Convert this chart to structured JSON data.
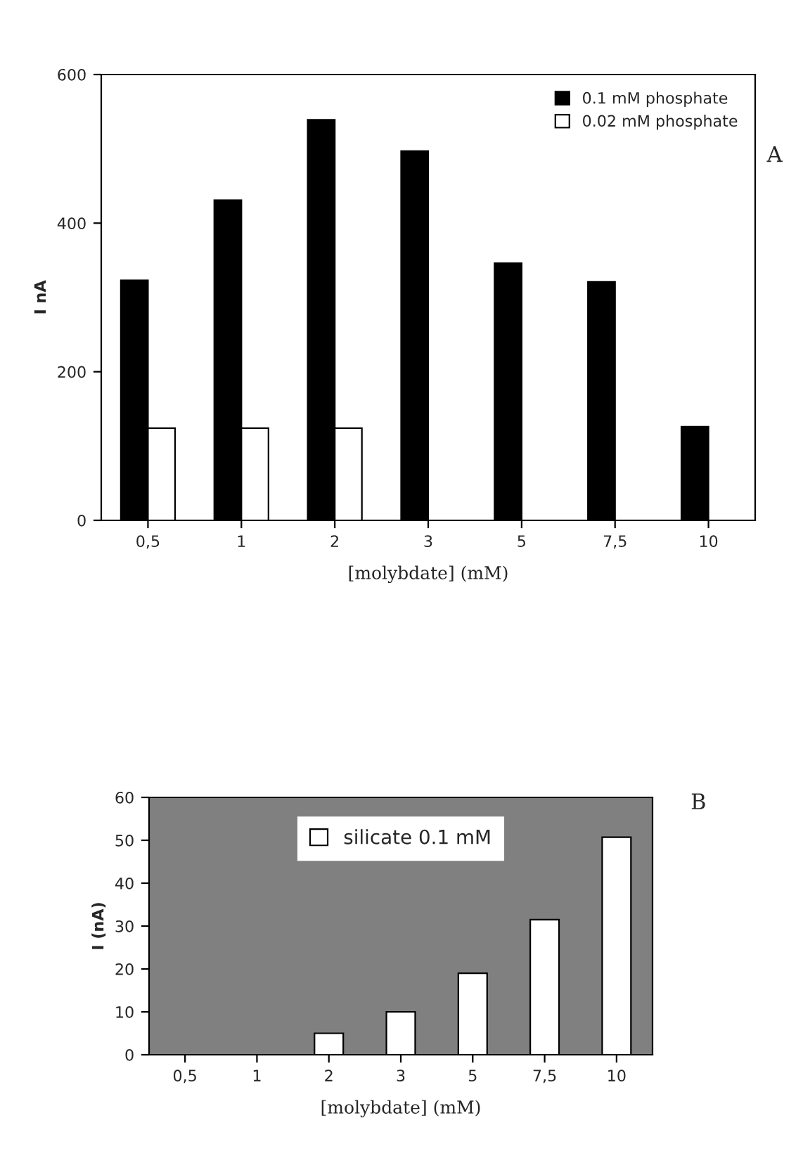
{
  "chart_data": [
    {
      "type": "bar",
      "ylabel": "I nA",
      "xlabel": "[molybdate] (mM)",
      "categories": [
        "0,5",
        "1",
        "2",
        "3",
        "5",
        "7,5",
        "10"
      ],
      "series": [
        {
          "name": "0.1 mM phosphate",
          "color": "#000000",
          "values": [
            323,
            431,
            539,
            497,
            346,
            321,
            126
          ]
        },
        {
          "name": "0.02 mM phosphate",
          "color": "#ffffff",
          "values": [
            124,
            124,
            124,
            null,
            null,
            null,
            null
          ]
        }
      ],
      "ylim": [
        0,
        600
      ],
      "yticks": [
        0,
        200,
        400,
        600
      ],
      "grid": false,
      "legend": "top right",
      "annotations": [
        "A"
      ]
    },
    {
      "type": "bar",
      "ylabel": "I (nA)",
      "xlabel": "[molybdate] (mM)",
      "categories": [
        "0,5",
        "1",
        "2",
        "3",
        "5",
        "7,5",
        "10"
      ],
      "series": [
        {
          "name": "silicate 0.1 mM",
          "color": "#ffffff",
          "values": [
            null,
            null,
            5,
            10,
            19,
            31.5,
            50.7
          ]
        }
      ],
      "ylim": [
        0,
        60
      ],
      "yticks": [
        0,
        10,
        20,
        30,
        40,
        50,
        60
      ],
      "grid": false,
      "legend": "top",
      "annotations": [
        "B"
      ]
    }
  ]
}
